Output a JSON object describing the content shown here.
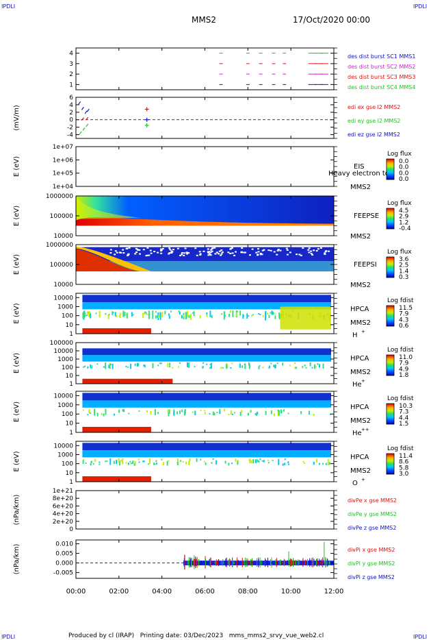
{
  "header": {
    "corner_tl": "IPDLI",
    "corner_tr": "IPDLI",
    "corner_bl": "IPDLI",
    "corner_br": "IPDLI",
    "spacecraft": "MMS2",
    "date": "17/Oct/2020 00:00",
    "footer": "Produced by cl (IRAP)   Printing date: 03/Dec/2023   mms_mms2_srvy_vue_web2.cl"
  },
  "colors": {
    "blue": "#1010c0",
    "magenta": "#d020d0",
    "red": "#e01010",
    "green": "#20c020"
  },
  "chart_data": [
    {
      "id": "burst",
      "type": "scatter",
      "yticks": [
        "1",
        "2",
        "3",
        "4"
      ],
      "ylim": [
        0.5,
        4.5
      ],
      "x": [
        6.75,
        8.0,
        8.6,
        9.2,
        9.7,
        11.0,
        11.3,
        11.55
      ],
      "series": [
        {
          "name": "des dist burst SC1 MMS1",
          "value": 1,
          "color": "#1010c0"
        },
        {
          "name": "des dist burst SC2 MMS2",
          "value": 2,
          "color": "#d020d0"
        },
        {
          "name": "des dist burst SC3 MMS3",
          "value": 3,
          "color": "#e01010"
        },
        {
          "name": "des dist burst SC4 MMS4",
          "value": 4,
          "color": "#20c020"
        }
      ]
    },
    {
      "id": "efield",
      "type": "line",
      "ylabel": "(mV/m)",
      "yticks": [
        "-4",
        "-2",
        "0",
        "2",
        "4",
        "6"
      ],
      "ylim": [
        -5,
        6
      ],
      "series": [
        {
          "name": "edi ex gse l2 MMS2",
          "color": "#e01010",
          "x": [
            0.3,
            0.5,
            3.3
          ],
          "y": [
            0.2,
            0.3,
            2.8
          ]
        },
        {
          "name": "edi ey gse l2 MMS2",
          "color": "#20c020",
          "x": [
            0.2,
            0.35,
            0.5,
            3.3
          ],
          "y": [
            -3.5,
            -2.5,
            -1.5,
            -1.5
          ]
        },
        {
          "name": "edi ez gse l2 MMS2",
          "color": "#1010c0",
          "x": [
            0.15,
            0.3,
            0.45,
            0.55,
            3.3
          ],
          "y": [
            4.5,
            3.0,
            2.0,
            2.5,
            0.0
          ]
        }
      ]
    },
    {
      "id": "eis",
      "type": "heatmap",
      "ylabel": "E (eV)",
      "yticks": [
        "1e+04",
        "1e+05",
        "1e+06",
        "1e+07"
      ],
      "ylim": [
        10000,
        10000000
      ],
      "instrument": [
        "EIS",
        "MMS2"
      ],
      "overlay": "Heavy electron to",
      "colorbar": {
        "title": "Log flux",
        "ticks": [
          "0.0",
          "0.0",
          "0.0",
          "0.0"
        ]
      }
    },
    {
      "id": "feepse",
      "type": "heatmap",
      "ylabel": "E (eV)",
      "yticks": [
        "10000",
        "100000",
        "1000000"
      ],
      "ylim": [
        10000,
        1000000
      ],
      "instrument": [
        "FEEPSE",
        "MMS2"
      ],
      "colorbar": {
        "title": "Log flux",
        "ticks": [
          "4.5",
          "2.9",
          "1.2",
          "-0.4"
        ]
      }
    },
    {
      "id": "feepsi",
      "type": "heatmap",
      "ylabel": "E (eV)",
      "yticks": [
        "10000",
        "100000",
        "1000000"
      ],
      "ylim": [
        10000,
        1000000
      ],
      "instrument": [
        "FEEPSI",
        "MMS2"
      ],
      "colorbar": {
        "title": "Log flux",
        "ticks": [
          "3.6",
          "2.5",
          "1.4",
          "0.3"
        ]
      }
    },
    {
      "id": "hpca_h",
      "type": "heatmap",
      "ylabel": "E (eV)",
      "yticks": [
        "1",
        "10",
        "100",
        "1000",
        "10000"
      ],
      "ylim": [
        1,
        30000
      ],
      "instrument": [
        "HPCA",
        "MMS2"
      ],
      "species": "H",
      "charge": "+",
      "colorbar": {
        "title": "Log fdist",
        "ticks": [
          "11.5",
          "7.9",
          "4.3",
          "0.6"
        ]
      }
    },
    {
      "id": "hpca_he",
      "type": "heatmap",
      "ylabel": "E (eV)",
      "yticks": [
        "1",
        "10",
        "100",
        "1000",
        "10000",
        "100000"
      ],
      "ylim": [
        1,
        100000
      ],
      "instrument": [
        "HPCA",
        "MMS2"
      ],
      "species": "He",
      "charge": "+",
      "colorbar": {
        "title": "Log fdist",
        "ticks": [
          "11.0",
          "7.9",
          "4.9",
          "1.8"
        ]
      }
    },
    {
      "id": "hpca_hepp",
      "type": "heatmap",
      "ylabel": "E (eV)",
      "yticks": [
        "1",
        "10",
        "100",
        "1000",
        "10000"
      ],
      "ylim": [
        1,
        30000
      ],
      "instrument": [
        "HPCA",
        "MMS2"
      ],
      "species": "He",
      "charge": "++",
      "colorbar": {
        "title": "Log fdist",
        "ticks": [
          "10.3",
          "7.3",
          "4.4",
          "1.5"
        ]
      }
    },
    {
      "id": "hpca_o",
      "type": "heatmap",
      "ylabel": "E (eV)",
      "yticks": [
        "1",
        "10",
        "100",
        "1000",
        "10000"
      ],
      "ylim": [
        1,
        30000
      ],
      "instrument": [
        "HPCA",
        "MMS2"
      ],
      "species": "O",
      "charge": "+",
      "colorbar": {
        "title": "Log fdist",
        "ticks": [
          "11.4",
          "8.6",
          "5.8",
          "3.0"
        ]
      }
    },
    {
      "id": "divpe",
      "type": "line",
      "ylabel": "(nPa/km)",
      "yticks": [
        "0",
        "2e+20",
        "4e+20",
        "6e+20",
        "8e+20",
        "1e+21"
      ],
      "ylim": [
        0,
        1e+21
      ],
      "series": [
        {
          "name": "divPe x gse MMS2",
          "color": "#e01010"
        },
        {
          "name": "divPe y gse MMS2",
          "color": "#20c020"
        },
        {
          "name": "divPe z gse MMS2",
          "color": "#1010c0"
        }
      ]
    },
    {
      "id": "divpi",
      "type": "line",
      "ylabel": "(nPa/km)",
      "yticks": [
        "-0.005",
        "0.000",
        "0.005",
        "0.010"
      ],
      "ylim": [
        -0.008,
        0.012
      ],
      "data_start": 5.0,
      "series": [
        {
          "name": "divPi x gse MMS2",
          "color": "#e01010"
        },
        {
          "name": "divPi y gse MMS2",
          "color": "#20c020"
        },
        {
          "name": "divPi z gse MMS2",
          "color": "#1010c0"
        }
      ]
    }
  ],
  "xaxis": {
    "ticks": [
      "00:00",
      "02:00",
      "04:00",
      "06:00",
      "08:00",
      "10:00",
      "12:00"
    ],
    "range_hours": [
      0,
      12
    ]
  }
}
